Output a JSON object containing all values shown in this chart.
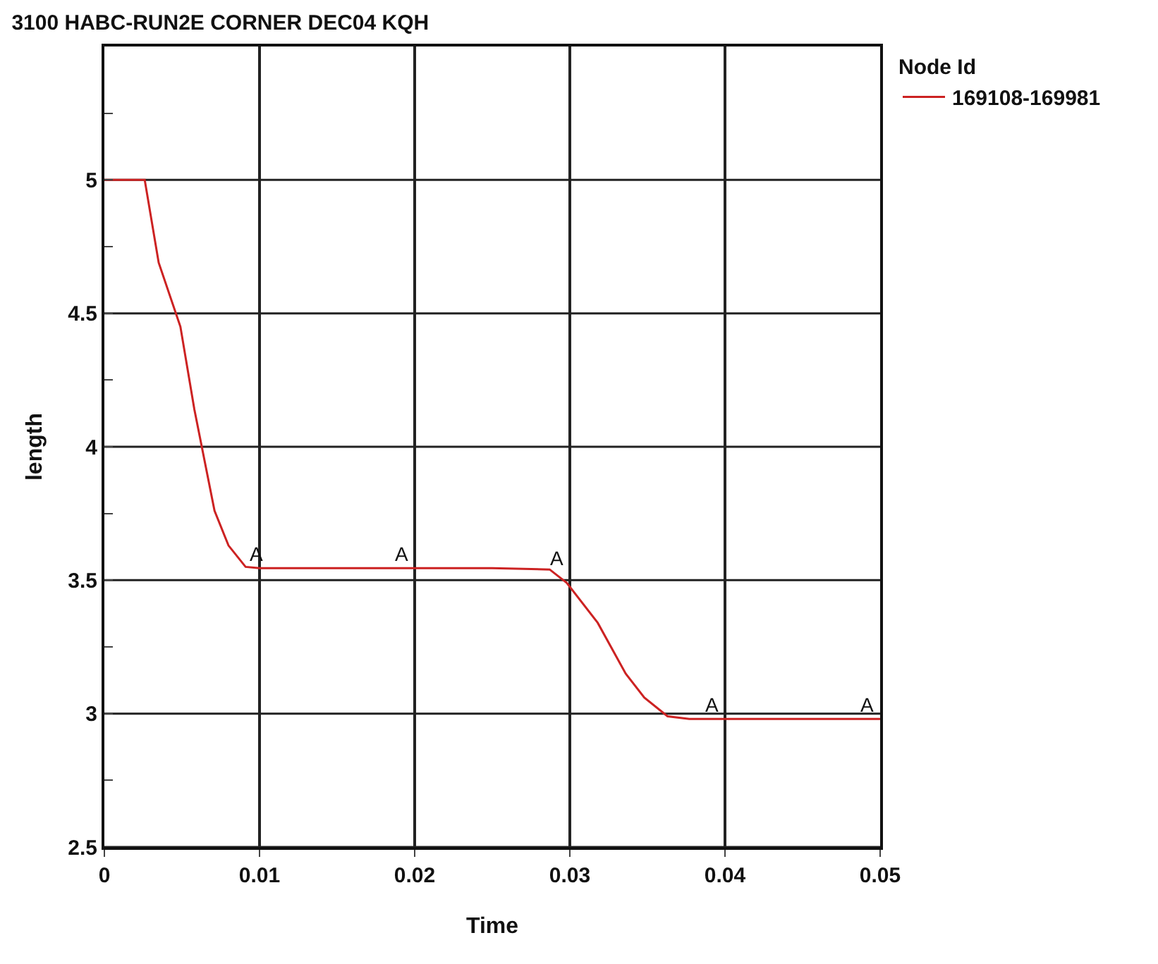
{
  "chart_data": {
    "type": "line",
    "title": "3100 HABC-RUN2E CORNER DEC04 KQH",
    "xlabel": "Time",
    "ylabel": "length",
    "legend_title": "Node Id",
    "series": [
      {
        "name": "169108-169981",
        "color": "#cc2222",
        "x": [
          0,
          0.0026,
          0.0035,
          0.0049,
          0.0058,
          0.0071,
          0.008,
          0.0091,
          0.01,
          0.015,
          0.02,
          0.025,
          0.0287,
          0.0298,
          0.0318,
          0.0336,
          0.0348,
          0.0363,
          0.0377,
          0.04,
          0.045,
          0.05
        ],
        "values": [
          5,
          5,
          4.69,
          4.45,
          4.14,
          3.76,
          3.63,
          3.55,
          3.545,
          3.545,
          3.545,
          3.545,
          3.54,
          3.49,
          3.34,
          3.15,
          3.06,
          2.99,
          2.98,
          2.98,
          2.98,
          2.98
        ]
      }
    ],
    "annotations": [
      {
        "text": "A",
        "x": 0.0098,
        "y": 3.545
      },
      {
        "text": "A",
        "x": 0.0192,
        "y": 3.545
      },
      {
        "text": "A",
        "x": 0.0292,
        "y": 3.53
      },
      {
        "text": "A",
        "x": 0.0392,
        "y": 2.98
      },
      {
        "text": "A",
        "x": 0.0492,
        "y": 2.98
      }
    ],
    "xlim": [
      0,
      0.05
    ],
    "xticks": [
      0,
      0.01,
      0.02,
      0.03,
      0.04,
      0.05
    ],
    "ylim": [
      2.5,
      5.5
    ],
    "yticks": [
      2.5,
      {
        "value": 2.75,
        "label": null
      },
      3,
      {
        "value": 3.25,
        "label": null
      },
      3.5,
      {
        "value": 3.75,
        "label": null
      },
      4,
      {
        "value": 4.25,
        "label": null
      },
      4.5,
      {
        "value": 4.75,
        "label": null
      },
      5,
      {
        "value": 5.25,
        "label": null
      }
    ],
    "grid": true,
    "legend": "top right",
    "line_style": "solid",
    "marker": "none"
  }
}
